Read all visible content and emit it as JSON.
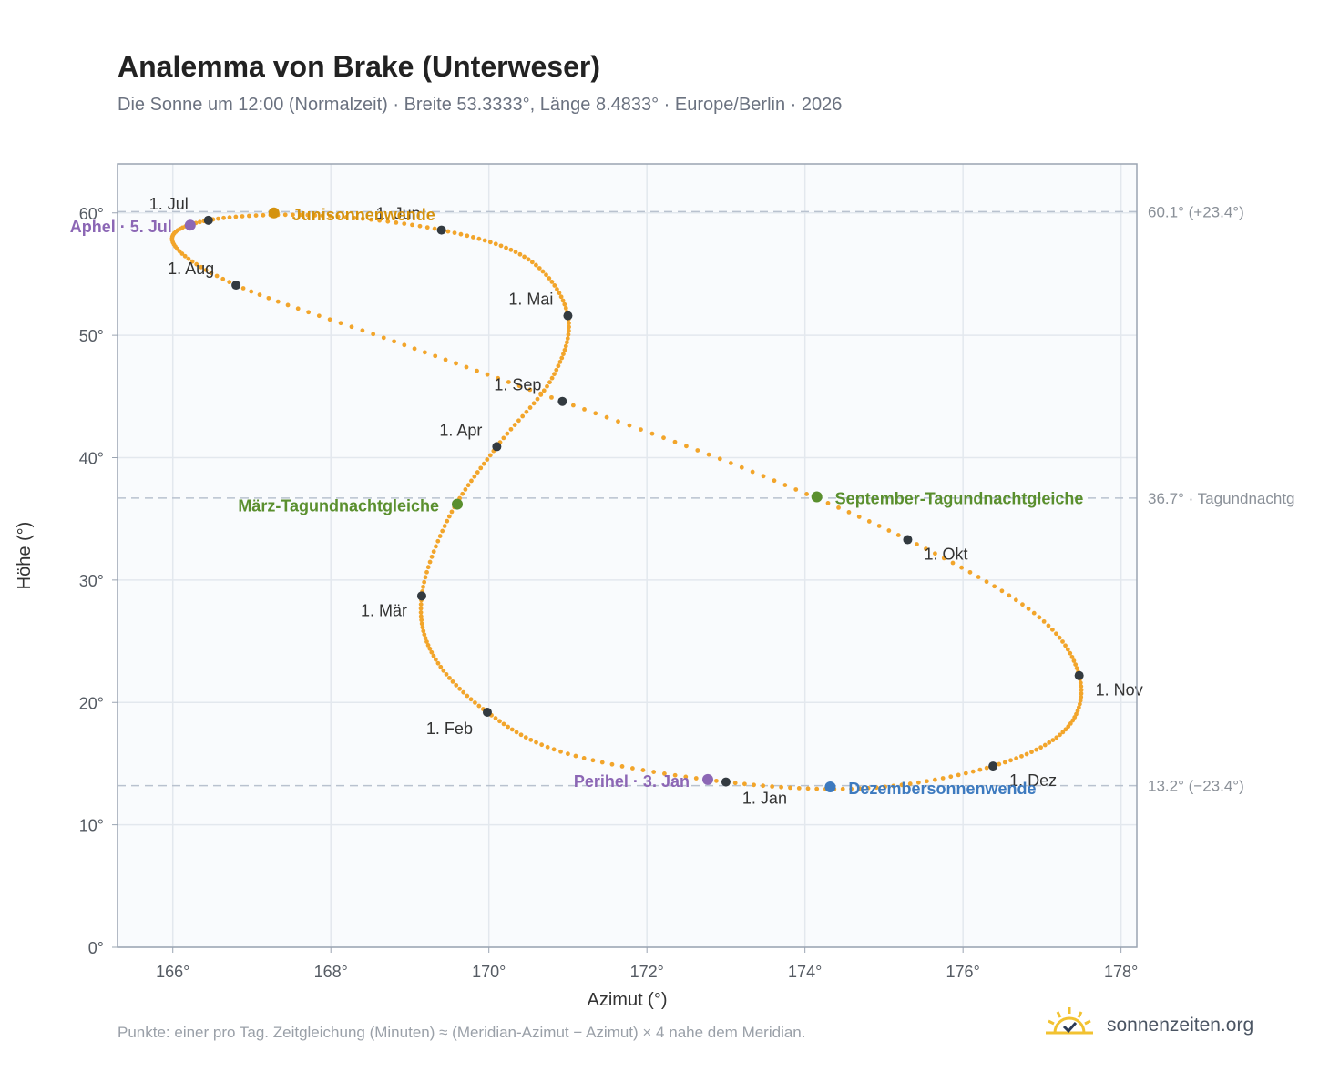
{
  "header": {
    "title": "Analemma von Brake (Unterweser)",
    "subtitle": "Die Sonne um 12:00 (Normalzeit) · Breite 53.3333°, Länge 8.4833° · Europe/Berlin · 2026"
  },
  "footer": {
    "note": "Punkte: einer pro Tag. Zeitgleichung (Minuten) ≈ (Meridian-Azimut − Azimut) × 4 nahe dem Meridian.",
    "brand": "sonnenzeiten.org",
    "brand_icon": "sun-check-icon"
  },
  "colors": {
    "curve": "#f2a52b",
    "month_dot": "#333a40",
    "solstice_summer": "#d4920f",
    "solstice_winter": "#3d7abf",
    "equinox": "#5a8f2e",
    "apsis": "#8c67b5",
    "reference_line": "#b9c2cf",
    "grid": "#e3e8ee",
    "plot_bg": "#f9fbfd",
    "frame": "#9aa4b2"
  },
  "chart_data": {
    "type": "scatter",
    "xlabel": "Azimut (°)",
    "ylabel": "Höhe (°)",
    "xlim": [
      165.3,
      178.2
    ],
    "ylim": [
      0,
      64
    ],
    "x_ticks": [
      166,
      168,
      170,
      172,
      174,
      176,
      178
    ],
    "x_tick_labels": [
      "166°",
      "168°",
      "170°",
      "172°",
      "174°",
      "176°",
      "178°"
    ],
    "y_ticks": [
      0,
      10,
      20,
      30,
      40,
      50,
      60
    ],
    "y_tick_labels": [
      "0°",
      "10°",
      "20°",
      "30°",
      "40°",
      "50°",
      "60°"
    ],
    "grid": true,
    "reference_lines": [
      {
        "y": 60.1,
        "label": "60.1° (+23.4°)"
      },
      {
        "y": 36.7,
        "label": "36.7° · Tagundnachtg"
      },
      {
        "y": 13.2,
        "label": "13.2° (−23.4°)"
      }
    ],
    "month_points": [
      {
        "label": "1. Jan",
        "az": 173.0,
        "alt": 13.5
      },
      {
        "label": "1. Feb",
        "az": 169.98,
        "alt": 19.2
      },
      {
        "label": "1. Mär",
        "az": 169.15,
        "alt": 28.7
      },
      {
        "label": "1. Apr",
        "az": 170.1,
        "alt": 40.9
      },
      {
        "label": "1. Mai",
        "az": 171.0,
        "alt": 51.6
      },
      {
        "label": "1. Jun",
        "az": 169.4,
        "alt": 58.6
      },
      {
        "label": "1. Jul",
        "az": 166.45,
        "alt": 59.4
      },
      {
        "label": "1. Aug",
        "az": 166.8,
        "alt": 54.1
      },
      {
        "label": "1. Sep",
        "az": 170.93,
        "alt": 44.6
      },
      {
        "label": "1. Okt",
        "az": 175.3,
        "alt": 33.3
      },
      {
        "label": "1. Nov",
        "az": 177.47,
        "alt": 22.2
      },
      {
        "label": "1. Dez",
        "az": 176.38,
        "alt": 14.8
      }
    ],
    "events": [
      {
        "label": "Junisonnenwende",
        "az": 167.28,
        "alt": 60.0,
        "kind": "solstice_summer"
      },
      {
        "label": "Dezembersonnenwende",
        "az": 174.32,
        "alt": 13.1,
        "kind": "solstice_winter"
      },
      {
        "label": "März-Tagundnachtgleiche",
        "az": 169.6,
        "alt": 36.2,
        "kind": "equinox"
      },
      {
        "label": "September-Tagundnachtgleiche",
        "az": 174.15,
        "alt": 36.8,
        "kind": "equinox"
      },
      {
        "label": "Aphel · 5. Jul",
        "az": 166.22,
        "alt": 59.0,
        "kind": "apsis"
      },
      {
        "label": "Perihel · 3. Jan",
        "az": 172.77,
        "alt": 13.7,
        "kind": "apsis"
      }
    ],
    "series": [
      {
        "values": [
          [
            173.0,
            13.5
          ],
          [
            171.0,
            15.8
          ],
          [
            169.98,
            19.2
          ],
          [
            169.3,
            23.8
          ],
          [
            169.15,
            28.7
          ],
          [
            169.5,
            35.2
          ],
          [
            170.1,
            40.9
          ],
          [
            170.8,
            46.5
          ],
          [
            171.0,
            51.6
          ],
          [
            170.5,
            56.2
          ],
          [
            169.4,
            58.6
          ],
          [
            167.8,
            59.8
          ],
          [
            166.45,
            59.4
          ],
          [
            166.0,
            57.6
          ],
          [
            166.8,
            54.1
          ],
          [
            168.8,
            49.5
          ],
          [
            170.93,
            44.6
          ],
          [
            173.2,
            39.2
          ],
          [
            175.3,
            33.3
          ],
          [
            176.9,
            27.3
          ],
          [
            177.47,
            22.2
          ],
          [
            177.3,
            17.8
          ],
          [
            176.38,
            14.8
          ],
          [
            174.8,
            13.0
          ],
          [
            173.0,
            13.5
          ]
        ]
      }
    ]
  }
}
